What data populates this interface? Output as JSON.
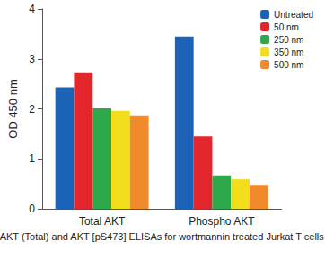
{
  "chart_data": {
    "type": "bar",
    "x_label": "AKT (Total) and AKT [pS473] ELISAs for wortmannin treated Jurkat T cells",
    "y_label": "OD 450 nm",
    "categories": [
      "Total AKT",
      "Phospho AKT"
    ],
    "series": [
      {
        "name": "Untreated",
        "color": "#1c63b8",
        "values": [
          2.43,
          3.45
        ]
      },
      {
        "name": "50 nm",
        "color": "#e3262b",
        "values": [
          2.73,
          1.45
        ]
      },
      {
        "name": "250 nm",
        "color": "#2fa84b",
        "values": [
          2.01,
          0.67
        ]
      },
      {
        "name": "350 nm",
        "color": "#f3de1c",
        "values": [
          1.96,
          0.59
        ]
      },
      {
        "name": "500 nm",
        "color": "#f08a2c",
        "values": [
          1.87,
          0.48
        ]
      }
    ],
    "ylim": [
      0,
      4
    ],
    "yticks": [
      0,
      1,
      2,
      3,
      4
    ],
    "grid": false,
    "legend": "upper right"
  }
}
